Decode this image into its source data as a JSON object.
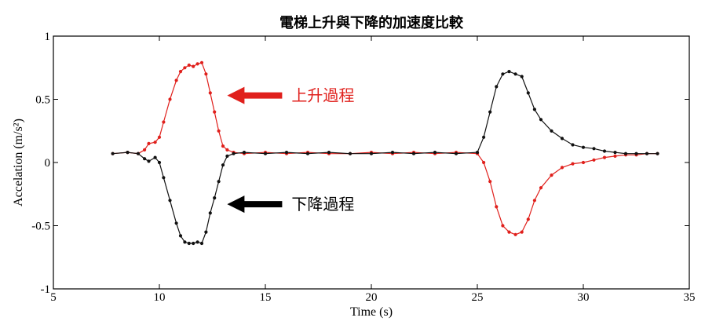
{
  "chart_data": {
    "type": "line",
    "title": "電梯上升與下降的加速度比較",
    "xlabel": "Time (s)",
    "ylabel": "Accelation (m/s²)",
    "xlim": [
      5,
      35
    ],
    "ylim": [
      -1,
      1
    ],
    "x_ticks": [
      5,
      10,
      15,
      20,
      25,
      30,
      35
    ],
    "y_ticks": [
      -1,
      -0.5,
      0,
      0.5,
      1
    ],
    "x_tick_labels": [
      "5",
      "10",
      "15",
      "20",
      "25",
      "30",
      "35"
    ],
    "y_tick_labels": [
      "-1",
      "-0.5",
      "0",
      "0.5",
      "1"
    ],
    "grid": false,
    "series": [
      {
        "color": "#e0201c",
        "x": [
          7.8,
          8.5,
          9.0,
          9.3,
          9.5,
          9.8,
          10.0,
          10.2,
          10.5,
          10.8,
          11.0,
          11.2,
          11.4,
          11.6,
          11.8,
          12.0,
          12.2,
          12.4,
          12.6,
          12.8,
          13.0,
          13.2,
          13.5,
          14.0,
          15.0,
          16.0,
          17.0,
          18.0,
          19.0,
          20.0,
          21.0,
          22.0,
          23.0,
          24.0,
          25.0,
          25.3,
          25.6,
          25.9,
          26.2,
          26.5,
          26.8,
          27.1,
          27.4,
          27.7,
          28.0,
          28.5,
          29.0,
          29.5,
          30.0,
          30.5,
          31.0,
          31.5,
          32.0,
          32.5,
          33.0,
          33.5
        ],
        "y": [
          0.07,
          0.08,
          0.07,
          0.1,
          0.15,
          0.16,
          0.2,
          0.32,
          0.5,
          0.65,
          0.72,
          0.75,
          0.77,
          0.76,
          0.78,
          0.79,
          0.7,
          0.55,
          0.4,
          0.25,
          0.13,
          0.1,
          0.08,
          0.07,
          0.08,
          0.07,
          0.08,
          0.07,
          0.07,
          0.08,
          0.07,
          0.08,
          0.07,
          0.08,
          0.07,
          0.0,
          -0.15,
          -0.35,
          -0.5,
          -0.55,
          -0.57,
          -0.55,
          -0.45,
          -0.3,
          -0.2,
          -0.1,
          -0.04,
          -0.01,
          0.0,
          0.02,
          0.04,
          0.05,
          0.06,
          0.06,
          0.07,
          0.07
        ]
      },
      {
        "color": "#111111",
        "x": [
          7.8,
          8.5,
          9.0,
          9.3,
          9.5,
          9.8,
          10.0,
          10.2,
          10.5,
          10.8,
          11.0,
          11.2,
          11.4,
          11.6,
          11.8,
          12.0,
          12.2,
          12.4,
          12.6,
          12.8,
          13.0,
          13.2,
          13.5,
          14.0,
          15.0,
          16.0,
          17.0,
          18.0,
          19.0,
          20.0,
          21.0,
          22.0,
          23.0,
          24.0,
          25.0,
          25.3,
          25.6,
          25.9,
          26.2,
          26.5,
          26.8,
          27.1,
          27.4,
          27.7,
          28.0,
          28.5,
          29.0,
          29.5,
          30.0,
          30.5,
          31.0,
          31.5,
          32.0,
          32.5,
          33.0,
          33.5
        ],
        "y": [
          0.07,
          0.08,
          0.07,
          0.03,
          0.01,
          0.04,
          0.0,
          -0.12,
          -0.3,
          -0.48,
          -0.58,
          -0.63,
          -0.64,
          -0.64,
          -0.63,
          -0.64,
          -0.55,
          -0.4,
          -0.28,
          -0.15,
          -0.02,
          0.05,
          0.07,
          0.08,
          0.07,
          0.08,
          0.07,
          0.08,
          0.07,
          0.07,
          0.08,
          0.07,
          0.08,
          0.07,
          0.08,
          0.2,
          0.4,
          0.6,
          0.7,
          0.72,
          0.7,
          0.68,
          0.55,
          0.42,
          0.34,
          0.25,
          0.19,
          0.14,
          0.12,
          0.11,
          0.09,
          0.08,
          0.07,
          0.07,
          0.07,
          0.07
        ]
      }
    ],
    "annotations": [
      {
        "text": "上升過程",
        "color": "#e0201c",
        "x": 13.2,
        "y": 0.53,
        "arrow": "left"
      },
      {
        "text": "下降過程",
        "color": "#000000",
        "x": 13.2,
        "y": -0.33,
        "arrow": "left"
      }
    ]
  }
}
